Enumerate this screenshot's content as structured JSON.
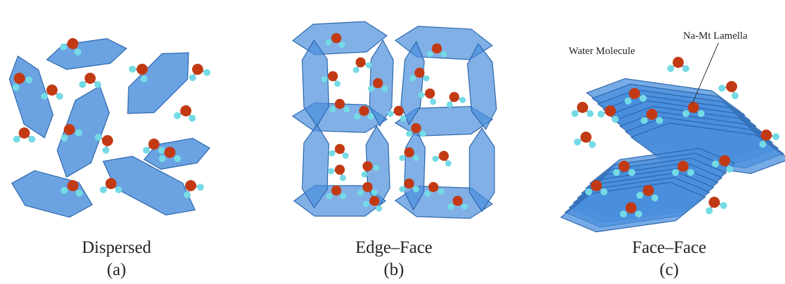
{
  "panels": [
    {
      "label": "Dispersed",
      "tag": "(a)"
    },
    {
      "label": "Edge–Face",
      "tag": "(b)"
    },
    {
      "label": "Face–Face",
      "tag": "(c)",
      "annotations": [
        "Water Molecule",
        "Na-Mt Lamella"
      ]
    }
  ]
}
